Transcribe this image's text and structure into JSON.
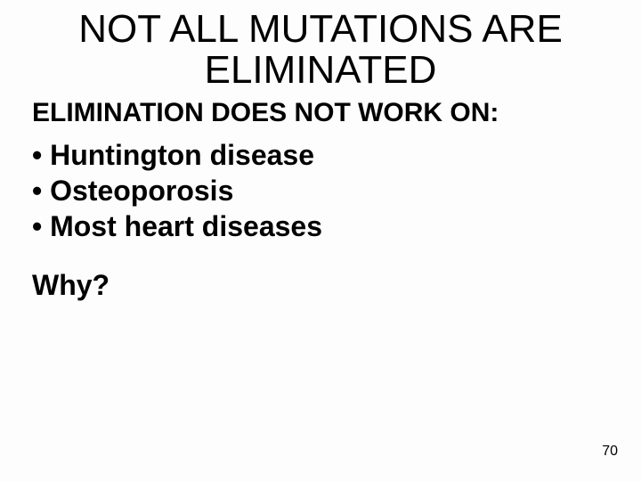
{
  "title": {
    "line1": "NOT ALL MUTATIONS ARE",
    "line2": "ELIMINATED",
    "fontsize": 44,
    "color": "#000000"
  },
  "subhead": {
    "text": "ELIMINATION DOES NOT WORK ON:",
    "fontsize": 30,
    "color": "#000000"
  },
  "bullets": {
    "items": [
      "• Huntington disease",
      "• Osteoporosis",
      "• Most heart diseases"
    ],
    "fontsize": 32,
    "color": "#000000"
  },
  "question": {
    "text": "Why?",
    "fontsize": 32,
    "color": "#000000"
  },
  "page_number": {
    "value": "70",
    "fontsize": 16,
    "color": "#000000"
  },
  "background_color": "#fcfdfc"
}
